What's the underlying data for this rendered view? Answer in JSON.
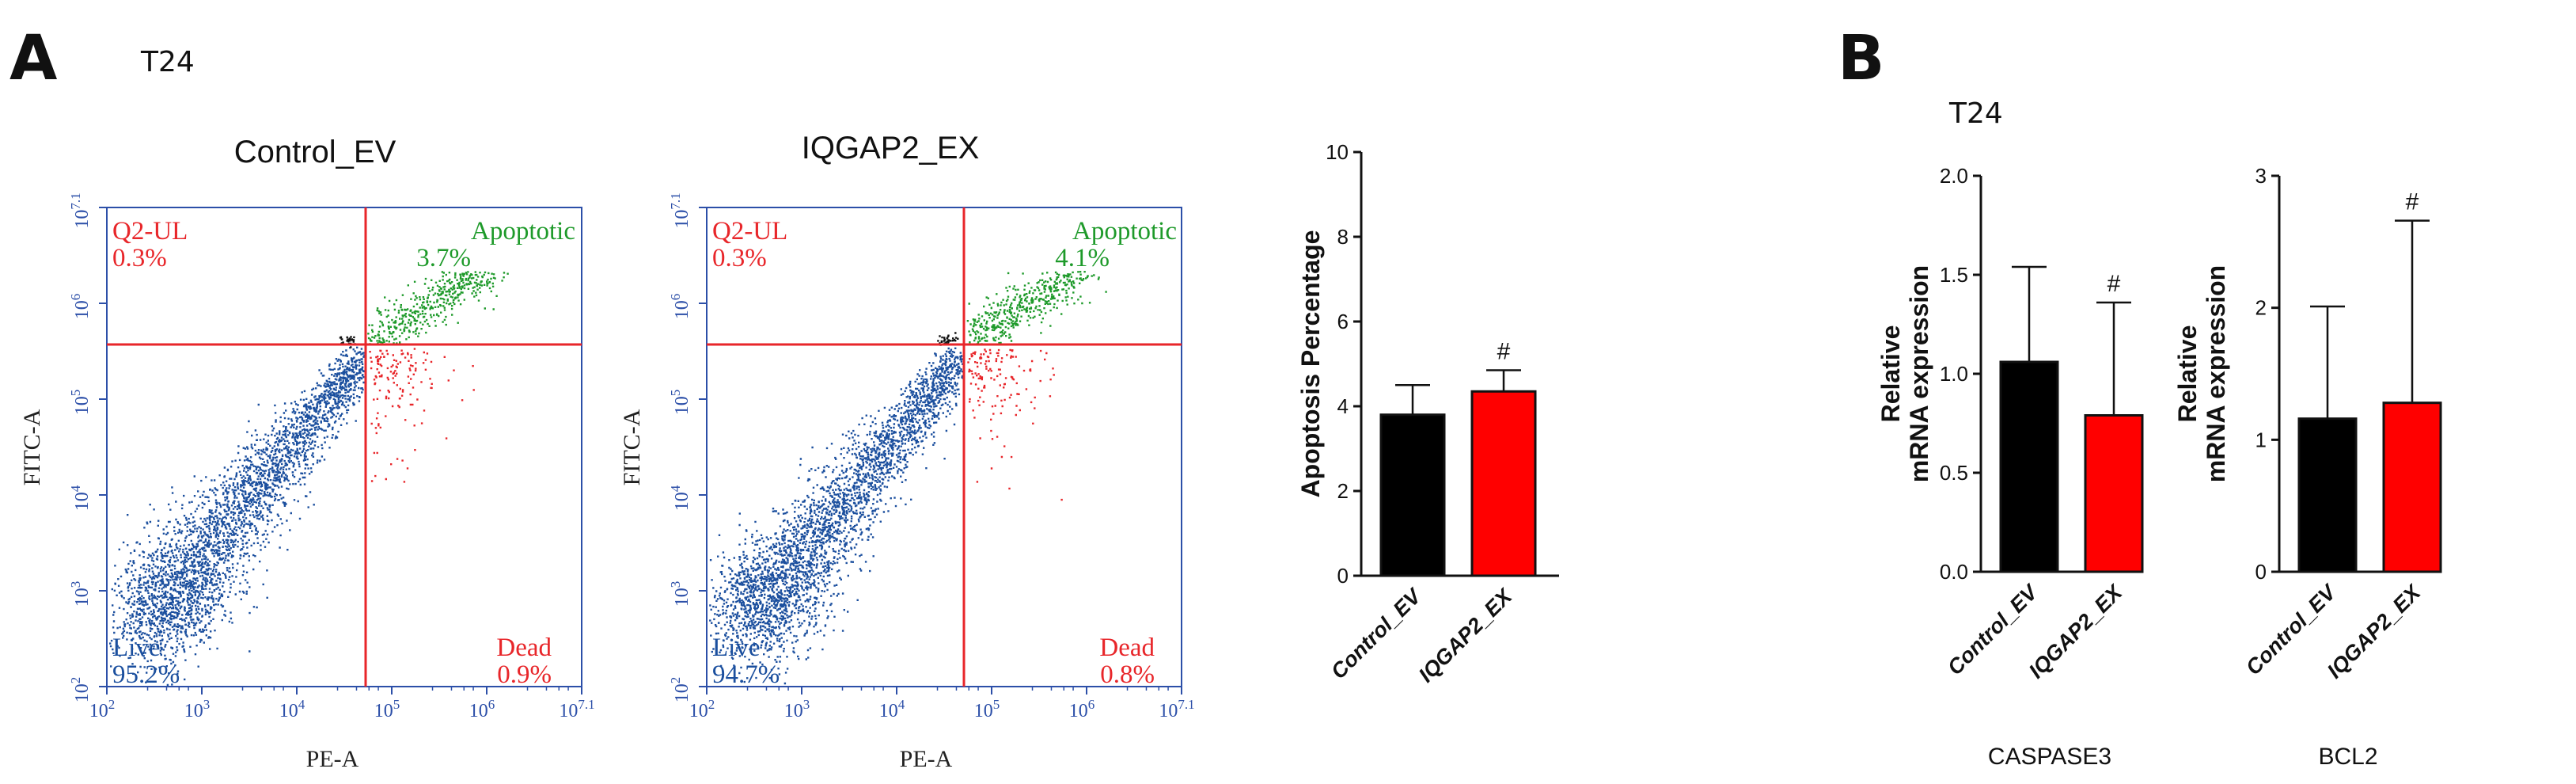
{
  "panel_a": {
    "letter": "A",
    "cell_line": "T24",
    "flow_plots": [
      {
        "title": "Control_EV",
        "x_axis_label": "PE-A",
        "y_axis_label": "FITC-A",
        "quadrants": {
          "ul": {
            "name": "Q2-UL",
            "value": "0.3%"
          },
          "ur": {
            "name": "Apoptotic",
            "value": "3.7%"
          },
          "ll": {
            "name": "Live",
            "value": "95.2%"
          },
          "lr": {
            "name": "Dead",
            "value": "0.9%"
          }
        }
      },
      {
        "title": "IQGAP2_EX",
        "x_axis_label": "PE-A",
        "y_axis_label": "FITC-A",
        "quadrants": {
          "ul": {
            "name": "Q2-UL",
            "value": "0.3%"
          },
          "ur": {
            "name": "Apoptotic",
            "value": "4.1%"
          },
          "ll": {
            "name": "Live",
            "value": "94.7%"
          },
          "lr": {
            "name": "Dead",
            "value": "0.8%"
          }
        }
      }
    ],
    "log_ticks": {
      "x": [
        {
          "base": "10",
          "exp": "2"
        },
        {
          "base": "10",
          "exp": "3"
        },
        {
          "base": "10",
          "exp": "4"
        },
        {
          "base": "10",
          "exp": "5"
        },
        {
          "base": "10",
          "exp": "6"
        },
        {
          "base": "10",
          "exp": "7.1"
        }
      ],
      "y": [
        {
          "base": "10",
          "exp": "2"
        },
        {
          "base": "10",
          "exp": "3"
        },
        {
          "base": "10",
          "exp": "4"
        },
        {
          "base": "10",
          "exp": "5"
        },
        {
          "base": "10",
          "exp": "6"
        },
        {
          "base": "10",
          "exp": "7.1"
        }
      ]
    }
  },
  "panel_b": {
    "letter": "B",
    "cell_line": "T24"
  },
  "colors": {
    "control": "#000000",
    "treatment": "#ff0000",
    "gate_line": "#e8262a",
    "live_dots": "#1b4f9e",
    "apoptotic_dots": "#1e9a2a",
    "dead_dots": "#e8262a"
  },
  "chart_data": [
    {
      "type": "bar",
      "id": "apoptosis",
      "title": "",
      "categories": [
        "Control_EV",
        "IQGAP2_EX"
      ],
      "values": [
        3.8,
        4.35
      ],
      "errors": [
        0.7,
        0.5
      ],
      "ylabel": "Apoptosis Percentage",
      "xlabel": "",
      "ylim": [
        0,
        10
      ],
      "yticks": [
        "0",
        "2",
        "4",
        "6",
        "8",
        "10"
      ],
      "annotations": [
        {
          "category": "IQGAP2_EX",
          "text": "#"
        }
      ]
    },
    {
      "type": "bar",
      "id": "caspase3",
      "title": "CASPASE3",
      "categories": [
        "Control_EV",
        "IQGAP2_EX"
      ],
      "values": [
        1.06,
        0.79
      ],
      "errors": [
        0.48,
        0.57
      ],
      "ylabel": "Relative mRNA expression",
      "ylabel_lines": [
        "Relative",
        "mRNA expression"
      ],
      "ylim": [
        0,
        2.0
      ],
      "yticks": [
        "0.0",
        "0.5",
        "1.0",
        "1.5",
        "2.0"
      ],
      "annotations": [
        {
          "category": "IQGAP2_EX",
          "text": "#"
        }
      ]
    },
    {
      "type": "bar",
      "id": "bcl2",
      "title": "BCL2",
      "categories": [
        "Control_EV",
        "IQGAP2_EX"
      ],
      "values": [
        1.16,
        1.28
      ],
      "errors": [
        0.85,
        1.38
      ],
      "ylabel": "Relative mRNA expression",
      "ylabel_lines": [
        "Relative",
        "mRNA expression"
      ],
      "ylim": [
        0,
        3
      ],
      "yticks": [
        "0",
        "1",
        "2",
        "3"
      ],
      "annotations": [
        {
          "category": "IQGAP2_EX",
          "text": "#"
        }
      ]
    }
  ]
}
